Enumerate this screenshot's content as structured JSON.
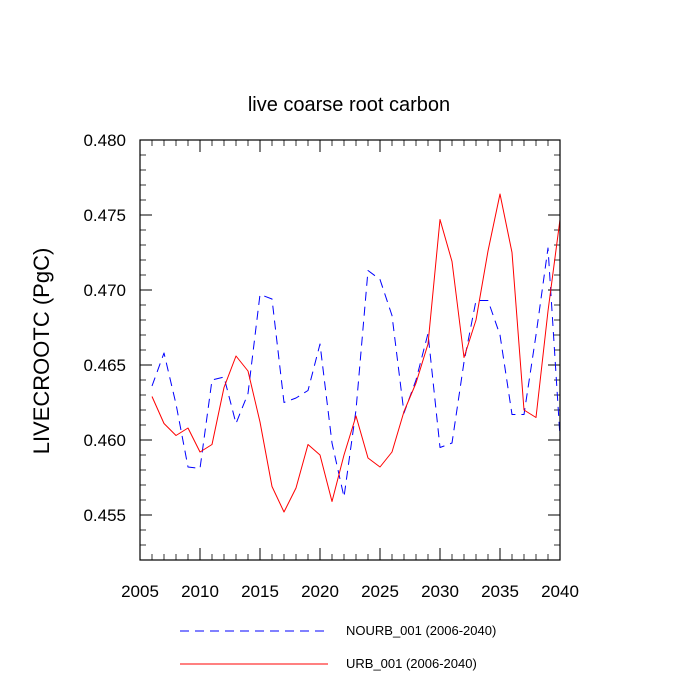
{
  "chart_data": {
    "type": "line",
    "title": "live coarse root carbon",
    "ylabel": "LIVECROOTC  (PgC)",
    "xlabel": "",
    "xlim": [
      2005,
      2040
    ],
    "ylim": [
      0.452,
      0.48
    ],
    "x_ticks": [
      2005,
      2010,
      2015,
      2020,
      2025,
      2030,
      2035,
      2040
    ],
    "x_tick_labels": [
      "2005",
      "2010",
      "2015",
      "2020",
      "2025",
      "2030",
      "2035",
      "2040"
    ],
    "y_ticks": [
      0.455,
      0.46,
      0.465,
      0.47,
      0.475,
      0.48
    ],
    "y_tick_labels": [
      "0.455",
      "0.460",
      "0.465",
      "0.470",
      "0.475",
      "0.480"
    ],
    "grid": false,
    "legend_position": "bottom",
    "x": [
      2006,
      2007,
      2008,
      2009,
      2010,
      2011,
      2012,
      2013,
      2014,
      2015,
      2016,
      2017,
      2018,
      2019,
      2020,
      2021,
      2022,
      2023,
      2024,
      2025,
      2026,
      2027,
      2028,
      2029,
      2030,
      2031,
      2032,
      2033,
      2034,
      2035,
      2036,
      2037,
      2038,
      2039,
      2040
    ],
    "series": [
      {
        "name": "NOURB_001 (2006-2040)",
        "color": "#0000ff",
        "dash": "dashed",
        "values": [
          0.4636,
          0.4658,
          0.4624,
          0.4582,
          0.4581,
          0.464,
          0.4642,
          0.4611,
          0.4631,
          0.4697,
          0.4694,
          0.4625,
          0.4628,
          0.4633,
          0.4664,
          0.4598,
          0.4562,
          0.462,
          0.4713,
          0.4707,
          0.4683,
          0.4618,
          0.464,
          0.4671,
          0.4595,
          0.4598,
          0.4652,
          0.4693,
          0.4693,
          0.467,
          0.4617,
          0.4617,
          0.467,
          0.4728,
          0.4602
        ]
      },
      {
        "name": "URB_001 (2006-2040)",
        "color": "#ff0000",
        "dash": "solid",
        "values": [
          0.4629,
          0.4611,
          0.4603,
          0.4608,
          0.4592,
          0.4597,
          0.4635,
          0.4656,
          0.4646,
          0.4612,
          0.4569,
          0.4552,
          0.4568,
          0.4597,
          0.459,
          0.4559,
          0.459,
          0.4616,
          0.4588,
          0.4582,
          0.4592,
          0.4619,
          0.4638,
          0.4664,
          0.4747,
          0.4719,
          0.4655,
          0.468,
          0.4726,
          0.4764,
          0.4725,
          0.462,
          0.4615,
          0.4686,
          0.4747
        ]
      }
    ]
  }
}
